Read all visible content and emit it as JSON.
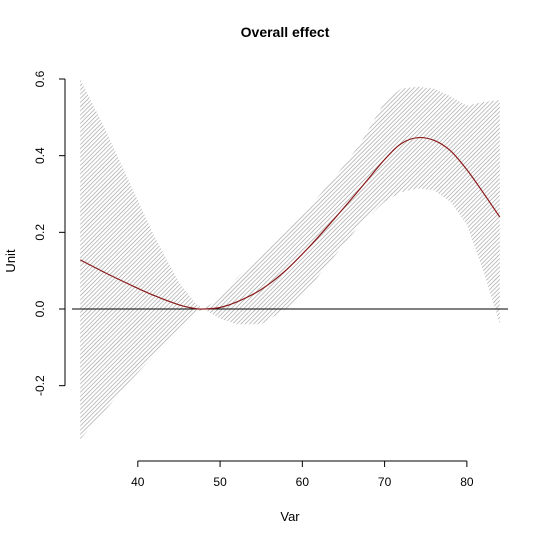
{
  "chart_data": {
    "type": "line",
    "title": "Overall effect",
    "xlabel": "Var",
    "ylabel": "Unit",
    "xlim": [
      32,
      85
    ],
    "ylim": [
      -0.36,
      0.6
    ],
    "x_ticks": [
      40,
      50,
      60,
      70,
      80
    ],
    "y_ticks": [
      -0.2,
      0.0,
      0.2,
      0.4,
      0.6
    ],
    "y_tick_labels": [
      "-0.2",
      "0.0",
      "0.2",
      "0.4",
      "0.6"
    ],
    "reference_line_y": 0,
    "grid": false,
    "series": [
      {
        "x": [
          33,
          36,
          39,
          42,
          45,
          47,
          48,
          50,
          52,
          55,
          58,
          61,
          64,
          67,
          70,
          72,
          74,
          76,
          78,
          80,
          82,
          84
        ],
        "y": [
          0.128,
          0.095,
          0.064,
          0.035,
          0.011,
          0.001,
          0.0,
          0.004,
          0.018,
          0.051,
          0.101,
          0.166,
          0.238,
          0.313,
          0.39,
          0.431,
          0.447,
          0.44,
          0.413,
          0.363,
          0.303,
          0.24
        ],
        "color": "#8b1a1a"
      }
    ],
    "confidence_band": {
      "x": [
        33,
        36,
        39,
        42,
        45,
        47,
        48,
        50,
        52,
        55,
        58,
        61,
        64,
        67,
        70,
        72,
        74,
        76,
        78,
        80,
        82,
        84
      ],
      "lower": [
        -0.34,
        -0.265,
        -0.19,
        -0.12,
        -0.05,
        -0.01,
        0.0,
        -0.025,
        -0.04,
        -0.04,
        0.0,
        0.06,
        0.14,
        0.22,
        0.28,
        0.305,
        0.315,
        0.31,
        0.28,
        0.22,
        0.1,
        -0.04
      ],
      "upper": [
        0.6,
        0.47,
        0.33,
        0.19,
        0.07,
        0.015,
        0.0,
        0.03,
        0.08,
        0.14,
        0.2,
        0.27,
        0.345,
        0.43,
        0.54,
        0.575,
        0.58,
        0.575,
        0.555,
        0.53,
        0.54,
        0.545
      ]
    }
  }
}
